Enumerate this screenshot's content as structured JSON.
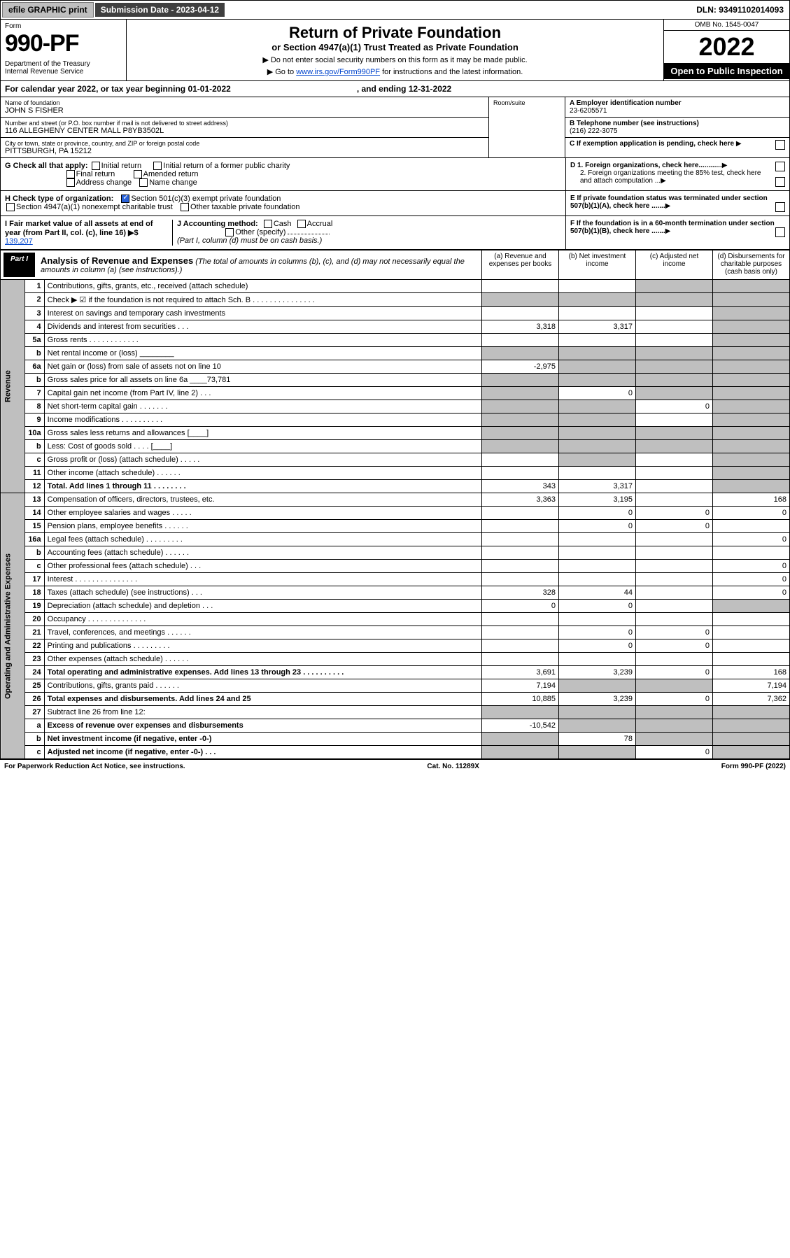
{
  "topbar": {
    "efile": "efile GRAPHIC print",
    "subdate_label": "Submission Date - 2023-04-12",
    "dln": "DLN: 93491102014093"
  },
  "header": {
    "form_word": "Form",
    "form_number": "990-PF",
    "dept": "Department of the Treasury\nInternal Revenue Service",
    "title": "Return of Private Foundation",
    "subtitle1": "or Section 4947(a)(1) Trust Treated as Private Foundation",
    "subtitle2a": "▶ Do not enter social security numbers on this form as it may be made public.",
    "subtitle2b": "▶ Go to ",
    "irs_link": "www.irs.gov/Form990PF",
    "subtitle2c": " for instructions and the latest information.",
    "omb": "OMB No. 1545-0047",
    "year": "2022",
    "open": "Open to Public Inspection"
  },
  "cal": {
    "text1": "For calendar year 2022, or tax year beginning 01-01-2022",
    "text2": ", and ending 12-31-2022"
  },
  "id": {
    "name_lbl": "Name of foundation",
    "name_val": "JOHN S FISHER",
    "addr_lbl": "Number and street (or P.O. box number if mail is not delivered to street address)",
    "addr_val": "116 ALLEGHENY CENTER MALL P8YB3502L",
    "room_lbl": "Room/suite",
    "city_lbl": "City or town, state or province, country, and ZIP or foreign postal code",
    "city_val": "PITTSBURGH, PA  15212",
    "a_lbl": "A Employer identification number",
    "a_val": "23-6205571",
    "b_lbl": "B Telephone number (see instructions)",
    "b_val": "(216) 222-3075",
    "c_lbl": "C If exemption application is pending, check here"
  },
  "g": {
    "label": "G Check all that apply:",
    "initial": "Initial return",
    "final": "Final return",
    "address": "Address change",
    "initial_former": "Initial return of a former public charity",
    "amended": "Amended return",
    "name": "Name change"
  },
  "d": {
    "d1": "D 1. Foreign organizations, check here............",
    "d2": "2. Foreign organizations meeting the 85% test, check here and attach computation ..."
  },
  "h": {
    "label": "H Check type of organization:",
    "c3": "Section 501(c)(3) exempt private foundation",
    "a1": "Section 4947(a)(1) nonexempt charitable trust",
    "other": "Other taxable private foundation"
  },
  "e": {
    "text": "E  If private foundation status was terminated under section 507(b)(1)(A), check here ......."
  },
  "i": {
    "label": "I Fair market value of all assets at end of year (from Part II, col. (c), line 16) ▶$ ",
    "val": "139,207"
  },
  "j": {
    "label": "J Accounting method:",
    "cash": "Cash",
    "accrual": "Accrual",
    "other": "Other (specify)",
    "note": "(Part I, column (d) must be on cash basis.)"
  },
  "f": {
    "text": "F  If the foundation is in a 60-month termination under section 507(b)(1)(B), check here ......."
  },
  "part1": {
    "tag": "Part I",
    "title_bold": "Analysis of Revenue and Expenses",
    "title_rest": " (The total of amounts in columns (b), (c), and (d) may not necessarily equal the amounts in column (a) (see instructions).)",
    "col_a": "(a) Revenue and expenses per books",
    "col_b": "(b) Net investment income",
    "col_c": "(c) Adjusted net income",
    "col_d": "(d) Disbursements for charitable purposes (cash basis only)",
    "revenue_label": "Revenue",
    "opex_label": "Operating and Administrative Expenses"
  },
  "rows": [
    {
      "n": "1",
      "d": "Contributions, gifts, grants, etc., received (attach schedule)",
      "a": "",
      "b": "",
      "c": "shade",
      "dd": "shade"
    },
    {
      "n": "2",
      "d": "Check ▶ ☑ if the foundation is not required to attach Sch. B    .  .  .  .  .  .  .  .  .  .  .  .  .  .  .",
      "a": "shade",
      "b": "shade",
      "c": "shade",
      "dd": "shade"
    },
    {
      "n": "3",
      "d": "Interest on savings and temporary cash investments",
      "a": "",
      "b": "",
      "c": "",
      "dd": "shade"
    },
    {
      "n": "4",
      "d": "Dividends and interest from securities    .   .   .",
      "a": "3,318",
      "b": "3,317",
      "c": "",
      "dd": "shade"
    },
    {
      "n": "5a",
      "d": "Gross rents    .   .   .   .   .   .   .   .   .   .   .   .",
      "a": "",
      "b": "",
      "c": "",
      "dd": "shade"
    },
    {
      "n": "b",
      "d": "Net rental income or (loss) ________",
      "a": "shade",
      "b": "shade",
      "c": "shade",
      "dd": "shade"
    },
    {
      "n": "6a",
      "d": "Net gain or (loss) from sale of assets not on line 10",
      "a": "-2,975",
      "b": "shade",
      "c": "shade",
      "dd": "shade"
    },
    {
      "n": "b",
      "d": "Gross sales price for all assets on line 6a ____73,781",
      "a": "shade",
      "b": "shade",
      "c": "shade",
      "dd": "shade"
    },
    {
      "n": "7",
      "d": "Capital gain net income (from Part IV, line 2)   .   .   .",
      "a": "shade",
      "b": "0",
      "c": "shade",
      "dd": "shade"
    },
    {
      "n": "8",
      "d": "Net short-term capital gain   .   .   .   .   .   .   .",
      "a": "shade",
      "b": "shade",
      "c": "0",
      "dd": "shade"
    },
    {
      "n": "9",
      "d": "Income modifications  .   .   .   .   .   .   .   .   .   .",
      "a": "shade",
      "b": "shade",
      "c": "",
      "dd": "shade"
    },
    {
      "n": "10a",
      "d": "Gross sales less returns and allowances   [____]",
      "a": "shade",
      "b": "shade",
      "c": "shade",
      "dd": "shade"
    },
    {
      "n": "b",
      "d": "Less: Cost of goods sold    .   .   .   .   [____]",
      "a": "shade",
      "b": "shade",
      "c": "shade",
      "dd": "shade"
    },
    {
      "n": "c",
      "d": "Gross profit or (loss) (attach schedule)    .   .   .   .   .",
      "a": "",
      "b": "shade",
      "c": "",
      "dd": "shade"
    },
    {
      "n": "11",
      "d": "Other income (attach schedule)    .   .   .   .   .   .",
      "a": "",
      "b": "",
      "c": "",
      "dd": "shade"
    },
    {
      "n": "12",
      "d": "Total. Add lines 1 through 11    .   .   .   .   .   .   .   .",
      "a": "343",
      "b": "3,317",
      "c": "",
      "dd": "shade",
      "bold": true
    },
    {
      "n": "13",
      "d": "Compensation of officers, directors, trustees, etc.",
      "a": "3,363",
      "b": "3,195",
      "c": "",
      "dd": "168"
    },
    {
      "n": "14",
      "d": "Other employee salaries and wages    .   .   .   .   .",
      "a": "",
      "b": "0",
      "c": "0",
      "dd": "0"
    },
    {
      "n": "15",
      "d": "Pension plans, employee benefits   .   .   .   .   .   .",
      "a": "",
      "b": "0",
      "c": "0",
      "dd": ""
    },
    {
      "n": "16a",
      "d": "Legal fees (attach schedule)  .   .   .   .   .   .   .   .   .",
      "a": "",
      "b": "",
      "c": "",
      "dd": "0"
    },
    {
      "n": "b",
      "d": "Accounting fees (attach schedule)  .   .   .   .   .   .",
      "a": "",
      "b": "",
      "c": "",
      "dd": ""
    },
    {
      "n": "c",
      "d": "Other professional fees (attach schedule)    .   .   .",
      "a": "",
      "b": "",
      "c": "",
      "dd": "0"
    },
    {
      "n": "17",
      "d": "Interest  .   .   .   .   .   .   .   .   .   .   .   .   .   .   .",
      "a": "",
      "b": "",
      "c": "",
      "dd": "0"
    },
    {
      "n": "18",
      "d": "Taxes (attach schedule) (see instructions)    .   .   .",
      "a": "328",
      "b": "44",
      "c": "",
      "dd": "0"
    },
    {
      "n": "19",
      "d": "Depreciation (attach schedule) and depletion    .   .   .",
      "a": "0",
      "b": "0",
      "c": "",
      "dd": "shade"
    },
    {
      "n": "20",
      "d": "Occupancy  .   .   .   .   .   .   .   .   .   .   .   .   .   .",
      "a": "",
      "b": "",
      "c": "",
      "dd": ""
    },
    {
      "n": "21",
      "d": "Travel, conferences, and meetings  .   .   .   .   .   .",
      "a": "",
      "b": "0",
      "c": "0",
      "dd": ""
    },
    {
      "n": "22",
      "d": "Printing and publications  .   .   .   .   .   .   .   .   .",
      "a": "",
      "b": "0",
      "c": "0",
      "dd": ""
    },
    {
      "n": "23",
      "d": "Other expenses (attach schedule)   .   .   .   .   .   .",
      "a": "",
      "b": "",
      "c": "",
      "dd": ""
    },
    {
      "n": "24",
      "d": "Total operating and administrative expenses. Add lines 13 through 23   .   .   .   .   .   .   .   .   .   .",
      "a": "3,691",
      "b": "3,239",
      "c": "0",
      "dd": "168",
      "bold": true
    },
    {
      "n": "25",
      "d": "Contributions, gifts, grants paid    .   .   .   .   .   .",
      "a": "7,194",
      "b": "shade",
      "c": "shade",
      "dd": "7,194"
    },
    {
      "n": "26",
      "d": "Total expenses and disbursements. Add lines 24 and 25",
      "a": "10,885",
      "b": "3,239",
      "c": "0",
      "dd": "7,362",
      "bold": true
    },
    {
      "n": "27",
      "d": "Subtract line 26 from line 12:",
      "a": "shade",
      "b": "shade",
      "c": "shade",
      "dd": "shade"
    },
    {
      "n": "a",
      "d": "Excess of revenue over expenses and disbursements",
      "a": "-10,542",
      "b": "shade",
      "c": "shade",
      "dd": "shade",
      "bold": true
    },
    {
      "n": "b",
      "d": "Net investment income (if negative, enter -0-)",
      "a": "shade",
      "b": "78",
      "c": "shade",
      "dd": "shade",
      "bold": true
    },
    {
      "n": "c",
      "d": "Adjusted net income (if negative, enter -0-)   .   .   .",
      "a": "shade",
      "b": "shade",
      "c": "0",
      "dd": "shade",
      "bold": true
    }
  ],
  "footer": {
    "left": "For Paperwork Reduction Act Notice, see instructions.",
    "mid": "Cat. No. 11289X",
    "right": "Form 990-PF (2022)"
  }
}
